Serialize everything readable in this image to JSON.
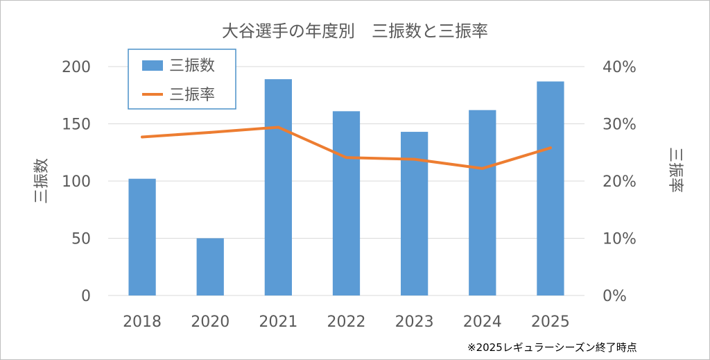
{
  "chart_data": {
    "type": "bar",
    "title": "大谷選手の年度別　三振数と三振率",
    "categories": [
      "2018",
      "2020",
      "2021",
      "2022",
      "2023",
      "2024",
      "2025"
    ],
    "series": [
      {
        "name": "三振数",
        "type": "bar",
        "axis": "left",
        "color": "#5b9bd5",
        "values": [
          102,
          50,
          189,
          161,
          143,
          162,
          187
        ]
      },
      {
        "name": "三振率",
        "type": "line",
        "axis": "right",
        "color": "#ed7d31",
        "values": [
          0.277,
          0.285,
          0.294,
          0.241,
          0.238,
          0.222,
          0.258
        ]
      }
    ],
    "ylabel": "三振数",
    "y2label": "三振率",
    "ylim": [
      0,
      200
    ],
    "y2lim": [
      0,
      0.4
    ],
    "yticks": [
      "0",
      "50",
      "100",
      "150",
      "200"
    ],
    "y2ticks": [
      "0%",
      "10%",
      "20%",
      "30%",
      "40%"
    ],
    "grid": true,
    "legend_position": "top-left"
  },
  "footnote": "※2025レギュラーシーズン終了時点"
}
